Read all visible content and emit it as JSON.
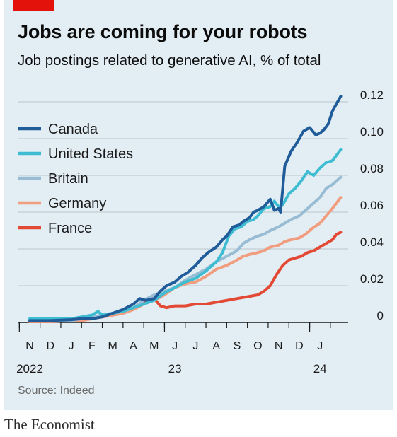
{
  "header": {
    "title": "Jobs are coming for your robots",
    "subtitle": "Job postings related to generative AI, % of total"
  },
  "footer": {
    "source": "Source: Indeed",
    "brand": "The Economist"
  },
  "colors": {
    "background": "#e3eef4",
    "accent_tag": "#e3120b",
    "gridline": "#b8c5cc",
    "axis": "#1a1a1a"
  },
  "chart_data": {
    "type": "line",
    "title": "Jobs are coming for your robots",
    "subtitle": "Job postings related to generative AI, % of total",
    "ylim": [
      0,
      0.12
    ],
    "yticks": [
      0,
      0.02,
      0.04,
      0.06,
      0.08,
      0.1,
      0.12
    ],
    "ytick_labels": [
      "0",
      "0.02",
      "0.04",
      "0.06",
      "0.08",
      "0.10",
      "0.12"
    ],
    "y_axis_side": "right",
    "grid": "horizontal",
    "legend_position": "top-left",
    "month_labels": [
      "N",
      "D",
      "J",
      "F",
      "M",
      "A",
      "M",
      "J",
      "J",
      "A",
      "S",
      "O",
      "N",
      "D",
      "J"
    ],
    "year_labels": [
      {
        "label": "2022",
        "month_index": 0
      },
      {
        "label": "23",
        "month_index": 7
      },
      {
        "label": "24",
        "month_index": 14
      }
    ],
    "x_unit": "months from Nov 2022",
    "series": [
      {
        "name": "Canada",
        "color": "#1f5c99",
        "points": [
          [
            0,
            0.001
          ],
          [
            1,
            0.001
          ],
          [
            2,
            0.0015
          ],
          [
            2.5,
            0.002
          ],
          [
            3,
            0.002
          ],
          [
            3.5,
            0.003
          ],
          [
            4,
            0.005
          ],
          [
            4.5,
            0.007
          ],
          [
            5,
            0.01
          ],
          [
            5.3,
            0.013
          ],
          [
            5.6,
            0.012
          ],
          [
            6,
            0.013
          ],
          [
            6.3,
            0.017
          ],
          [
            6.6,
            0.02
          ],
          [
            7,
            0.022
          ],
          [
            7.3,
            0.025
          ],
          [
            7.6,
            0.027
          ],
          [
            8,
            0.031
          ],
          [
            8.3,
            0.035
          ],
          [
            8.6,
            0.038
          ],
          [
            9,
            0.041
          ],
          [
            9.3,
            0.045
          ],
          [
            9.5,
            0.047
          ],
          [
            9.8,
            0.052
          ],
          [
            10.1,
            0.053
          ],
          [
            10.3,
            0.055
          ],
          [
            10.6,
            0.057
          ],
          [
            10.8,
            0.06
          ],
          [
            11,
            0.061
          ],
          [
            11.3,
            0.063
          ],
          [
            11.6,
            0.067
          ],
          [
            11.8,
            0.061
          ],
          [
            12,
            0.062
          ],
          [
            12.1,
            0.06
          ],
          [
            12.3,
            0.085
          ],
          [
            12.6,
            0.093
          ],
          [
            12.9,
            0.098
          ],
          [
            13.2,
            0.104
          ],
          [
            13.5,
            0.106
          ],
          [
            13.8,
            0.102
          ],
          [
            14,
            0.103
          ],
          [
            14.2,
            0.105
          ],
          [
            14.4,
            0.108
          ],
          [
            14.6,
            0.115
          ],
          [
            14.8,
            0.119
          ],
          [
            15,
            0.123
          ]
        ]
      },
      {
        "name": "United States",
        "color": "#3ebcd2",
        "points": [
          [
            0,
            0.002
          ],
          [
            1,
            0.002
          ],
          [
            2,
            0.002
          ],
          [
            2.5,
            0.003
          ],
          [
            3,
            0.004
          ],
          [
            3.3,
            0.006
          ],
          [
            3.5,
            0.004
          ],
          [
            4,
            0.005
          ],
          [
            4.5,
            0.006
          ],
          [
            5,
            0.008
          ],
          [
            5.5,
            0.01
          ],
          [
            6,
            0.012
          ],
          [
            6.5,
            0.016
          ],
          [
            7,
            0.019
          ],
          [
            7.5,
            0.022
          ],
          [
            8,
            0.024
          ],
          [
            8.5,
            0.028
          ],
          [
            9,
            0.033
          ],
          [
            9.3,
            0.038
          ],
          [
            9.6,
            0.047
          ],
          [
            9.9,
            0.051
          ],
          [
            10.2,
            0.052
          ],
          [
            10.5,
            0.055
          ],
          [
            10.8,
            0.056
          ],
          [
            11,
            0.058
          ],
          [
            11.3,
            0.062
          ],
          [
            11.6,
            0.063
          ],
          [
            11.8,
            0.066
          ],
          [
            12,
            0.063
          ],
          [
            12.2,
            0.064
          ],
          [
            12.5,
            0.07
          ],
          [
            12.8,
            0.073
          ],
          [
            13.1,
            0.077
          ],
          [
            13.4,
            0.082
          ],
          [
            13.7,
            0.08
          ],
          [
            14,
            0.084
          ],
          [
            14.3,
            0.087
          ],
          [
            14.6,
            0.088
          ],
          [
            14.8,
            0.091
          ],
          [
            15,
            0.094
          ]
        ]
      },
      {
        "name": "Britain",
        "color": "#98bcd3",
        "points": [
          [
            0,
            0.001
          ],
          [
            1,
            0.001
          ],
          [
            2,
            0.001
          ],
          [
            2.5,
            0.002
          ],
          [
            3,
            0.003
          ],
          [
            3.5,
            0.004
          ],
          [
            4,
            0.005
          ],
          [
            4.5,
            0.006
          ],
          [
            5,
            0.008
          ],
          [
            5.5,
            0.012
          ],
          [
            6,
            0.015
          ],
          [
            6.5,
            0.017
          ],
          [
            7,
            0.019
          ],
          [
            7.5,
            0.023
          ],
          [
            8,
            0.026
          ],
          [
            8.5,
            0.029
          ],
          [
            9,
            0.033
          ],
          [
            9.5,
            0.036
          ],
          [
            10,
            0.039
          ],
          [
            10.3,
            0.043
          ],
          [
            10.6,
            0.045
          ],
          [
            11,
            0.047
          ],
          [
            11.3,
            0.048
          ],
          [
            11.6,
            0.05
          ],
          [
            12,
            0.052
          ],
          [
            12.3,
            0.054
          ],
          [
            12.6,
            0.056
          ],
          [
            13,
            0.058
          ],
          [
            13.3,
            0.061
          ],
          [
            13.6,
            0.064
          ],
          [
            14,
            0.068
          ],
          [
            14.3,
            0.073
          ],
          [
            14.6,
            0.075
          ],
          [
            14.8,
            0.077
          ],
          [
            15,
            0.079
          ]
        ]
      },
      {
        "name": "Germany",
        "color": "#f19e80",
        "points": [
          [
            0,
            0.0005
          ],
          [
            1,
            0.0005
          ],
          [
            2,
            0.001
          ],
          [
            2.5,
            0.001
          ],
          [
            3,
            0.002
          ],
          [
            3.5,
            0.003
          ],
          [
            4,
            0.004
          ],
          [
            4.5,
            0.005
          ],
          [
            5,
            0.007
          ],
          [
            5.5,
            0.01
          ],
          [
            6,
            0.012
          ],
          [
            6.5,
            0.015
          ],
          [
            7,
            0.019
          ],
          [
            7.5,
            0.021
          ],
          [
            8,
            0.022
          ],
          [
            8.5,
            0.025
          ],
          [
            9,
            0.029
          ],
          [
            9.5,
            0.031
          ],
          [
            10,
            0.034
          ],
          [
            10.3,
            0.036
          ],
          [
            10.6,
            0.037
          ],
          [
            11,
            0.038
          ],
          [
            11.3,
            0.039
          ],
          [
            11.6,
            0.041
          ],
          [
            12,
            0.042
          ],
          [
            12.3,
            0.044
          ],
          [
            12.6,
            0.045
          ],
          [
            13,
            0.046
          ],
          [
            13.3,
            0.048
          ],
          [
            13.6,
            0.051
          ],
          [
            14,
            0.054
          ],
          [
            14.3,
            0.058
          ],
          [
            14.6,
            0.062
          ],
          [
            14.8,
            0.065
          ],
          [
            15,
            0.068
          ]
        ]
      },
      {
        "name": "France",
        "color": "#e34a35",
        "points": [
          [
            0,
            0.0005
          ],
          [
            1,
            0.0005
          ],
          [
            2,
            0.001
          ],
          [
            2.5,
            0.001
          ],
          [
            3,
            0.002
          ],
          [
            3.5,
            0.003
          ],
          [
            4,
            0.004
          ],
          [
            4.5,
            0.005
          ],
          [
            5,
            0.007
          ],
          [
            5.3,
            0.01
          ],
          [
            5.6,
            0.012
          ],
          [
            6,
            0.013
          ],
          [
            6.3,
            0.009
          ],
          [
            6.6,
            0.008
          ],
          [
            7,
            0.009
          ],
          [
            7.5,
            0.009
          ],
          [
            8,
            0.01
          ],
          [
            8.5,
            0.01
          ],
          [
            9,
            0.011
          ],
          [
            9.5,
            0.012
          ],
          [
            10,
            0.013
          ],
          [
            10.5,
            0.014
          ],
          [
            11,
            0.015
          ],
          [
            11.3,
            0.017
          ],
          [
            11.6,
            0.02
          ],
          [
            11.9,
            0.026
          ],
          [
            12.2,
            0.031
          ],
          [
            12.5,
            0.034
          ],
          [
            12.8,
            0.035
          ],
          [
            13.1,
            0.036
          ],
          [
            13.4,
            0.038
          ],
          [
            13.7,
            0.039
          ],
          [
            14,
            0.041
          ],
          [
            14.3,
            0.043
          ],
          [
            14.6,
            0.045
          ],
          [
            14.8,
            0.048
          ],
          [
            15,
            0.049
          ]
        ]
      }
    ]
  }
}
